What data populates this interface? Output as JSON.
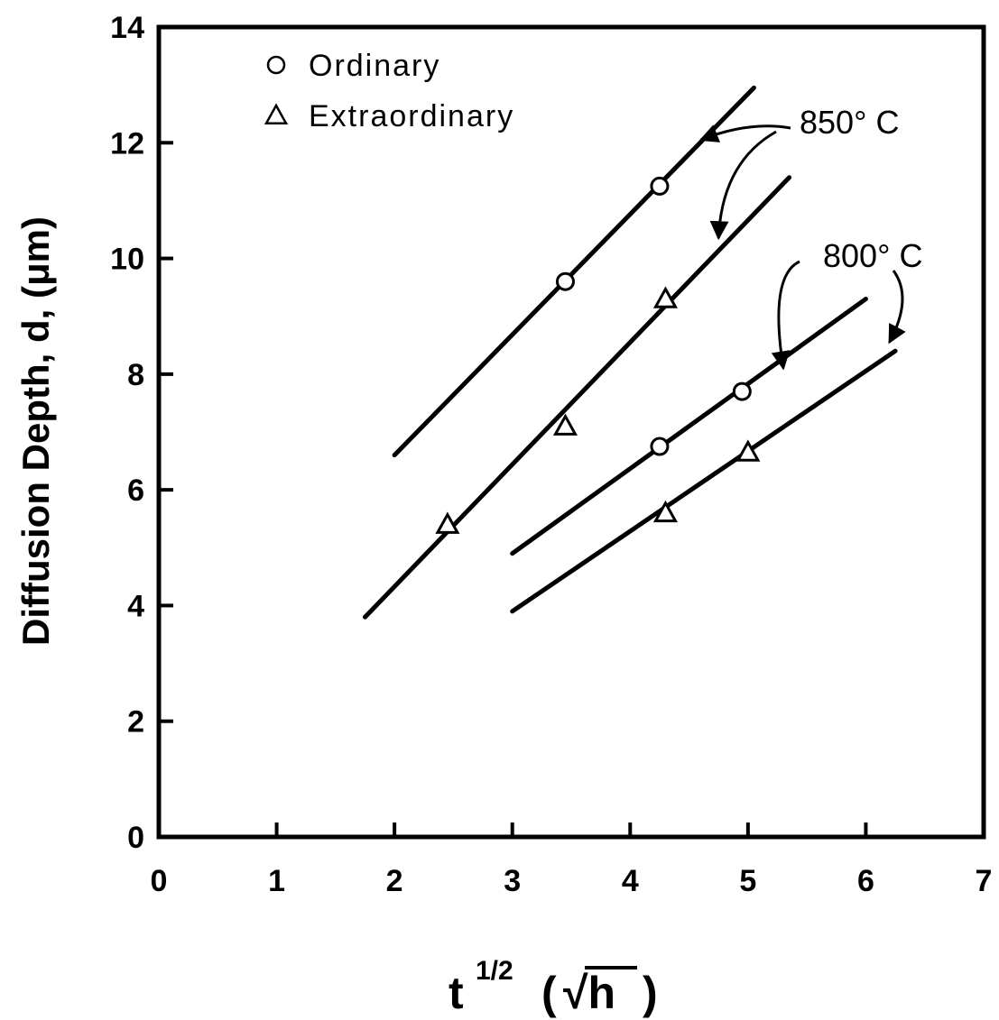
{
  "chart_data": {
    "type": "scatter",
    "title": "",
    "xlabel": {
      "base": "t",
      "sup": "1/2",
      "unit": "√h"
    },
    "ylabel": "Diffusion Depth, d, (μm)",
    "xlim": [
      0,
      7
    ],
    "ylim": [
      0,
      14
    ],
    "xticks": [
      0,
      1,
      2,
      3,
      4,
      5,
      6,
      7
    ],
    "yticks": [
      0,
      2,
      4,
      6,
      8,
      10,
      12,
      14
    ],
    "grid": false,
    "legend_position": "top-left",
    "legend": [
      {
        "marker": "circle",
        "label": "Ordinary"
      },
      {
        "marker": "triangle",
        "label": "Extraordinary"
      }
    ],
    "series": [
      {
        "temperature": "850",
        "marker": "circle",
        "points": [
          [
            3.45,
            9.6
          ],
          [
            4.25,
            11.25
          ]
        ],
        "fit_line": [
          [
            2.0,
            6.6
          ],
          [
            5.05,
            12.95
          ]
        ]
      },
      {
        "temperature": "850",
        "marker": "triangle",
        "points": [
          [
            2.45,
            5.4
          ],
          [
            3.45,
            7.1
          ],
          [
            4.3,
            9.3
          ]
        ],
        "fit_line": [
          [
            1.75,
            3.8
          ],
          [
            5.35,
            11.4
          ]
        ]
      },
      {
        "temperature": "800",
        "marker": "circle",
        "points": [
          [
            4.25,
            6.75
          ],
          [
            4.95,
            7.7
          ]
        ],
        "fit_line": [
          [
            3.0,
            4.9
          ],
          [
            6.0,
            9.3
          ]
        ]
      },
      {
        "temperature": "800",
        "marker": "triangle",
        "points": [
          [
            4.3,
            5.6
          ],
          [
            5.0,
            6.65
          ]
        ],
        "fit_line": [
          [
            3.0,
            3.9
          ],
          [
            6.25,
            8.4
          ]
        ]
      }
    ],
    "annotations": [
      {
        "text": "850° C",
        "targets": [
          [
            4.6,
            12.05
          ],
          [
            4.75,
            10.35
          ]
        ]
      },
      {
        "text": "800° C",
        "targets": [
          [
            5.3,
            8.1
          ],
          [
            6.2,
            8.55
          ]
        ]
      }
    ]
  }
}
